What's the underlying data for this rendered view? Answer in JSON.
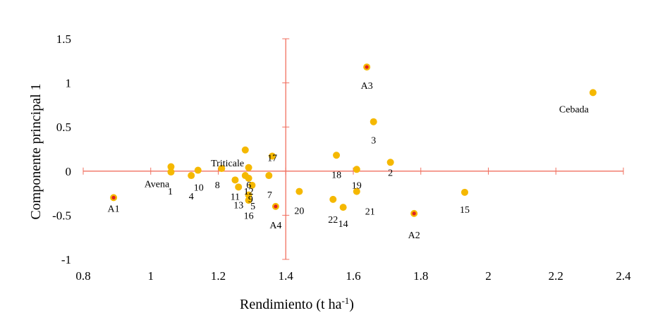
{
  "chart_data": {
    "type": "scatter",
    "title": "",
    "xlabel": "Rendimiento (t ha",
    "xlabel_sup": "-1",
    "xlabel_close": ")",
    "ylabel": "Componente principal 1",
    "xlim": [
      0.8,
      2.4
    ],
    "ylim": [
      -1,
      1.5
    ],
    "xticks": [
      "0.8",
      "1",
      "1.2",
      "1.4",
      "1.6",
      "1.8",
      "2",
      "2.2",
      "2.4"
    ],
    "yticks": [
      "1.5",
      "1",
      "0.5",
      "0",
      "-0.5",
      "-1"
    ],
    "x_tick_values": [
      0.8,
      1.0,
      1.2,
      1.4,
      1.6,
      1.8,
      2.0,
      2.2,
      2.4
    ],
    "y_tick_values": [
      1.5,
      1.0,
      0.5,
      0,
      -0.5,
      -1.0
    ],
    "axis_cross": {
      "x": 1.4,
      "y": 0
    },
    "grid": false,
    "colors": {
      "axis": "#f07060",
      "point": "#f5b800",
      "environment_core": "#e02020",
      "text": "#000000"
    },
    "points": [
      {
        "label": "Cebada",
        "x": 2.31,
        "y": 0.89,
        "kind": "genotype",
        "anchor": "start"
      },
      {
        "label": "Triticale",
        "x": 1.29,
        "y": 0.04,
        "kind": "genotype",
        "anchor": "middle"
      },
      {
        "label": "Avena",
        "x": 1.06,
        "y": 0.05,
        "kind": "genotype",
        "anchor": "middle"
      },
      {
        "label": "1",
        "x": 1.06,
        "y": -0.01,
        "kind": "genotype",
        "anchor": "middle"
      },
      {
        "label": "2",
        "x": 1.71,
        "y": 0.1,
        "kind": "genotype",
        "anchor": "middle"
      },
      {
        "label": "3",
        "x": 1.66,
        "y": 0.56,
        "kind": "genotype",
        "anchor": "middle"
      },
      {
        "label": "4",
        "x": 1.12,
        "y": -0.05,
        "kind": "genotype",
        "anchor": "middle"
      },
      {
        "label": "5",
        "x": 1.29,
        "y": -0.33,
        "kind": "genotype",
        "anchor": "middle"
      },
      {
        "label": "6",
        "x": 1.28,
        "y": -0.05,
        "kind": "genotype",
        "anchor": "middle"
      },
      {
        "label": "7",
        "x": 1.35,
        "y": -0.05,
        "kind": "genotype",
        "anchor": "middle"
      },
      {
        "label": "8",
        "x": 1.21,
        "y": 0.03,
        "kind": "genotype",
        "anchor": "middle"
      },
      {
        "label": "9",
        "x": 1.3,
        "y": -0.16,
        "kind": "genotype",
        "anchor": "middle"
      },
      {
        "label": "10",
        "x": 1.14,
        "y": 0.01,
        "kind": "genotype",
        "anchor": "middle"
      },
      {
        "label": "11",
        "x": 1.25,
        "y": -0.1,
        "kind": "genotype",
        "anchor": "middle"
      },
      {
        "label": "12",
        "x": 1.29,
        "y": -0.08,
        "kind": "genotype",
        "anchor": "middle"
      },
      {
        "label": "13",
        "x": 1.26,
        "y": -0.18,
        "kind": "genotype",
        "anchor": "middle"
      },
      {
        "label": "14",
        "x": 1.57,
        "y": -0.41,
        "kind": "genotype",
        "anchor": "middle"
      },
      {
        "label": "15",
        "x": 1.93,
        "y": -0.24,
        "kind": "genotype",
        "anchor": "middle"
      },
      {
        "label": "16",
        "x": 1.29,
        "y": -0.27,
        "kind": "genotype",
        "anchor": "middle"
      },
      {
        "label": "17",
        "x": 1.36,
        "y": 0.17,
        "kind": "genotype",
        "anchor": "middle"
      },
      {
        "label": "18",
        "x": 1.55,
        "y": 0.18,
        "kind": "genotype",
        "anchor": "middle"
      },
      {
        "label": "19",
        "x": 1.61,
        "y": 0.02,
        "kind": "genotype",
        "anchor": "middle"
      },
      {
        "label": "20",
        "x": 1.44,
        "y": -0.23,
        "kind": "genotype",
        "anchor": "middle"
      },
      {
        "label": "21",
        "x": 1.61,
        "y": -0.23,
        "kind": "genotype",
        "anchor": "middle"
      },
      {
        "label": "22",
        "x": 1.54,
        "y": -0.32,
        "kind": "genotype",
        "anchor": "middle"
      },
      {
        "label": "",
        "x": 1.28,
        "y": 0.24,
        "kind": "genotype",
        "anchor": "middle"
      },
      {
        "label": "A1",
        "x": 0.89,
        "y": -0.3,
        "kind": "environment",
        "anchor": "middle"
      },
      {
        "label": "A2",
        "x": 1.78,
        "y": -0.48,
        "kind": "environment",
        "anchor": "middle"
      },
      {
        "label": "A3",
        "x": 1.64,
        "y": 1.18,
        "kind": "environment",
        "anchor": "middle"
      },
      {
        "label": "A4",
        "x": 1.37,
        "y": -0.4,
        "kind": "environment",
        "anchor": "middle"
      }
    ]
  }
}
